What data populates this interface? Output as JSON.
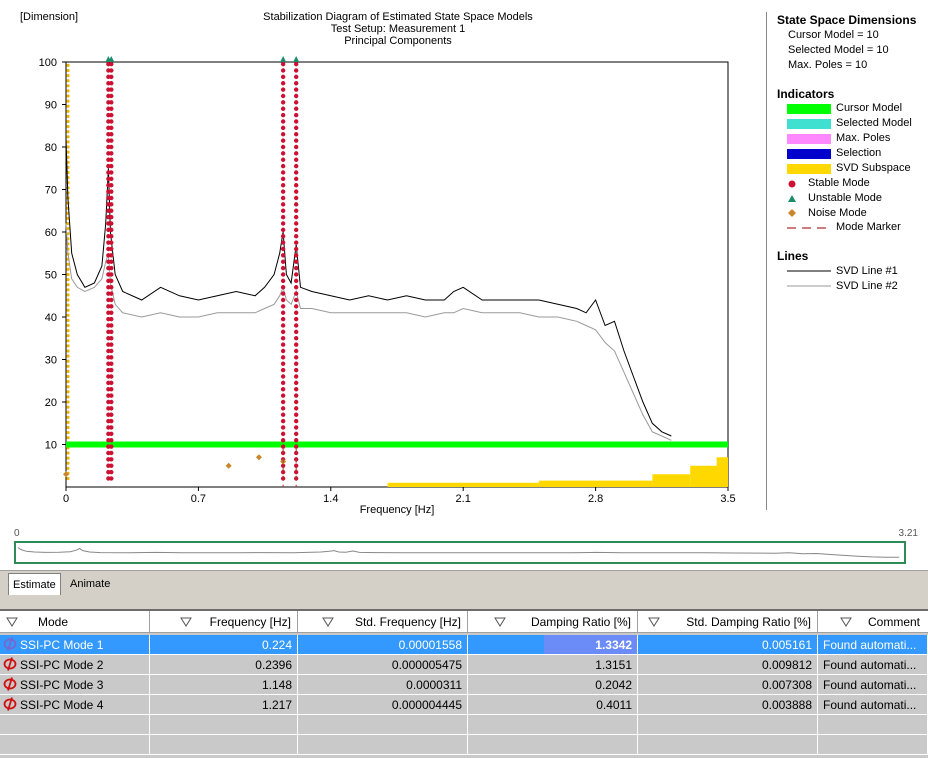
{
  "chart": {
    "corner_label": "[Dimension]",
    "title_lines": [
      "Stabilization Diagram of Estimated State Space Models",
      "Test Setup: Measurement 1",
      "Principal Components"
    ],
    "x_label": "Frequency [Hz]"
  },
  "chart_data": {
    "type": "line",
    "xlim": [
      0,
      3.5
    ],
    "ylim": [
      0,
      100
    ],
    "x_ticks": [
      "0",
      "0.7",
      "1.4",
      "2.1",
      "2.8",
      "3.5"
    ],
    "y_ticks": [
      "10",
      "20",
      "30",
      "40",
      "50",
      "60",
      "70",
      "80",
      "90",
      "100"
    ],
    "series": [
      {
        "name": "SVD Line #1",
        "color": "#000000",
        "x": [
          0.0,
          0.01,
          0.03,
          0.06,
          0.1,
          0.15,
          0.19,
          0.21,
          0.224,
          0.235,
          0.26,
          0.3,
          0.4,
          0.5,
          0.6,
          0.7,
          0.8,
          0.9,
          1.0,
          1.05,
          1.1,
          1.13,
          1.148,
          1.165,
          1.19,
          1.217,
          1.24,
          1.3,
          1.4,
          1.5,
          1.6,
          1.7,
          1.8,
          1.9,
          2.0,
          2.05,
          2.1,
          2.2,
          2.3,
          2.4,
          2.5,
          2.6,
          2.7,
          2.75,
          2.8,
          2.85,
          2.9,
          2.95,
          3.0,
          3.05,
          3.1,
          3.15,
          3.2
        ],
        "y": [
          82,
          68,
          55,
          50,
          47,
          48,
          52,
          62,
          75,
          60,
          50,
          46,
          44,
          47,
          45,
          44,
          45,
          46,
          45,
          47,
          50,
          55,
          60,
          50,
          48,
          57,
          47,
          46,
          45,
          44,
          45,
          44,
          45,
          44,
          44,
          46,
          47,
          44,
          44,
          44,
          44,
          43,
          42,
          41,
          44,
          38,
          39,
          32,
          26,
          20,
          15,
          13,
          12
        ]
      },
      {
        "name": "SVD Line #2",
        "color": "#9a9a9a",
        "x": [
          0.0,
          0.01,
          0.03,
          0.06,
          0.1,
          0.15,
          0.19,
          0.21,
          0.224,
          0.235,
          0.26,
          0.3,
          0.4,
          0.5,
          0.6,
          0.7,
          0.8,
          0.9,
          1.0,
          1.05,
          1.1,
          1.13,
          1.148,
          1.165,
          1.19,
          1.217,
          1.24,
          1.3,
          1.4,
          1.5,
          1.6,
          1.7,
          1.8,
          1.9,
          2.0,
          2.05,
          2.1,
          2.2,
          2.3,
          2.4,
          2.5,
          2.6,
          2.7,
          2.75,
          2.8,
          2.85,
          2.9,
          2.95,
          3.0,
          3.05,
          3.1,
          3.15,
          3.2
        ],
        "y": [
          62,
          55,
          49,
          47,
          46,
          47,
          49,
          53,
          55,
          48,
          43,
          41,
          40,
          41,
          40,
          40,
          41,
          41,
          41,
          42,
          43,
          45,
          47,
          44,
          43,
          46,
          42,
          42,
          41,
          41,
          41,
          41,
          41,
          40,
          41,
          41,
          42,
          41,
          41,
          41,
          40,
          40,
          39,
          38,
          37,
          34,
          32,
          27,
          22,
          17,
          13,
          12,
          11
        ]
      }
    ],
    "stable_mode_columns": [
      0.224,
      0.2396,
      1.148,
      1.217
    ],
    "cursor_model": 10,
    "noise_points": [
      {
        "x": 0.0,
        "y": 3
      },
      {
        "x": 0.86,
        "y": 5
      },
      {
        "x": 1.02,
        "y": 7
      },
      {
        "x": 1.148,
        "y": 6
      }
    ]
  },
  "legend": {
    "state_space": {
      "title": "State Space Dimensions",
      "lines": [
        "Cursor Model = 10",
        "Selected Model = 10",
        "Max. Poles = 10"
      ]
    },
    "indicators": {
      "title": "Indicators",
      "items": [
        {
          "label": "Cursor Model",
          "color": "#00ff00"
        },
        {
          "label": "Selected Model",
          "color": "#40e0d0"
        },
        {
          "label": "Max. Poles",
          "color": "#ff88ff"
        },
        {
          "label": "Selection",
          "color": "#0000cc"
        },
        {
          "label": "SVD Subspace",
          "color": "#ffd800"
        },
        {
          "label": "Stable Mode",
          "color": "#cc1133"
        },
        {
          "label": "Unstable Mode",
          "color": "#1a8c6a"
        },
        {
          "label": "Noise Mode",
          "color": "#c8862a"
        },
        {
          "label": "Mode Marker",
          "color": "#b03030"
        }
      ]
    },
    "lines": {
      "title": "Lines",
      "items": [
        {
          "label": "SVD Line #1",
          "color": "#000000"
        },
        {
          "label": "SVD Line #2",
          "color": "#9a9a9a"
        }
      ]
    }
  },
  "overview": {
    "left_label": "0",
    "right_label": "3.21"
  },
  "tabs": [
    {
      "label": "Estimate",
      "active": true
    },
    {
      "label": "Animate",
      "active": false
    }
  ],
  "table": {
    "columns": [
      "Mode",
      "Frequency [Hz]",
      "Std. Frequency [Hz]",
      "Damping Ratio [%]",
      "Std. Damping Ratio [%]",
      "Comment"
    ],
    "rows": [
      {
        "mode": "SSI-PC Mode 1",
        "freq": "0.224",
        "std_freq": "0.00001558",
        "damp": "1.3342",
        "std_damp": "0.005161",
        "comment": "Found automati..."
      },
      {
        "mode": "SSI-PC Mode 2",
        "freq": "0.2396",
        "std_freq": "0.000005475",
        "damp": "1.3151",
        "std_damp": "0.009812",
        "comment": "Found automati..."
      },
      {
        "mode": "SSI-PC Mode 3",
        "freq": "1.148",
        "std_freq": "0.0000311",
        "damp": "0.2042",
        "std_damp": "0.007308",
        "comment": "Found automati..."
      },
      {
        "mode": "SSI-PC Mode 4",
        "freq": "1.217",
        "std_freq": "0.000004445",
        "damp": "0.4011",
        "std_damp": "0.003888",
        "comment": "Found automati..."
      }
    ]
  }
}
